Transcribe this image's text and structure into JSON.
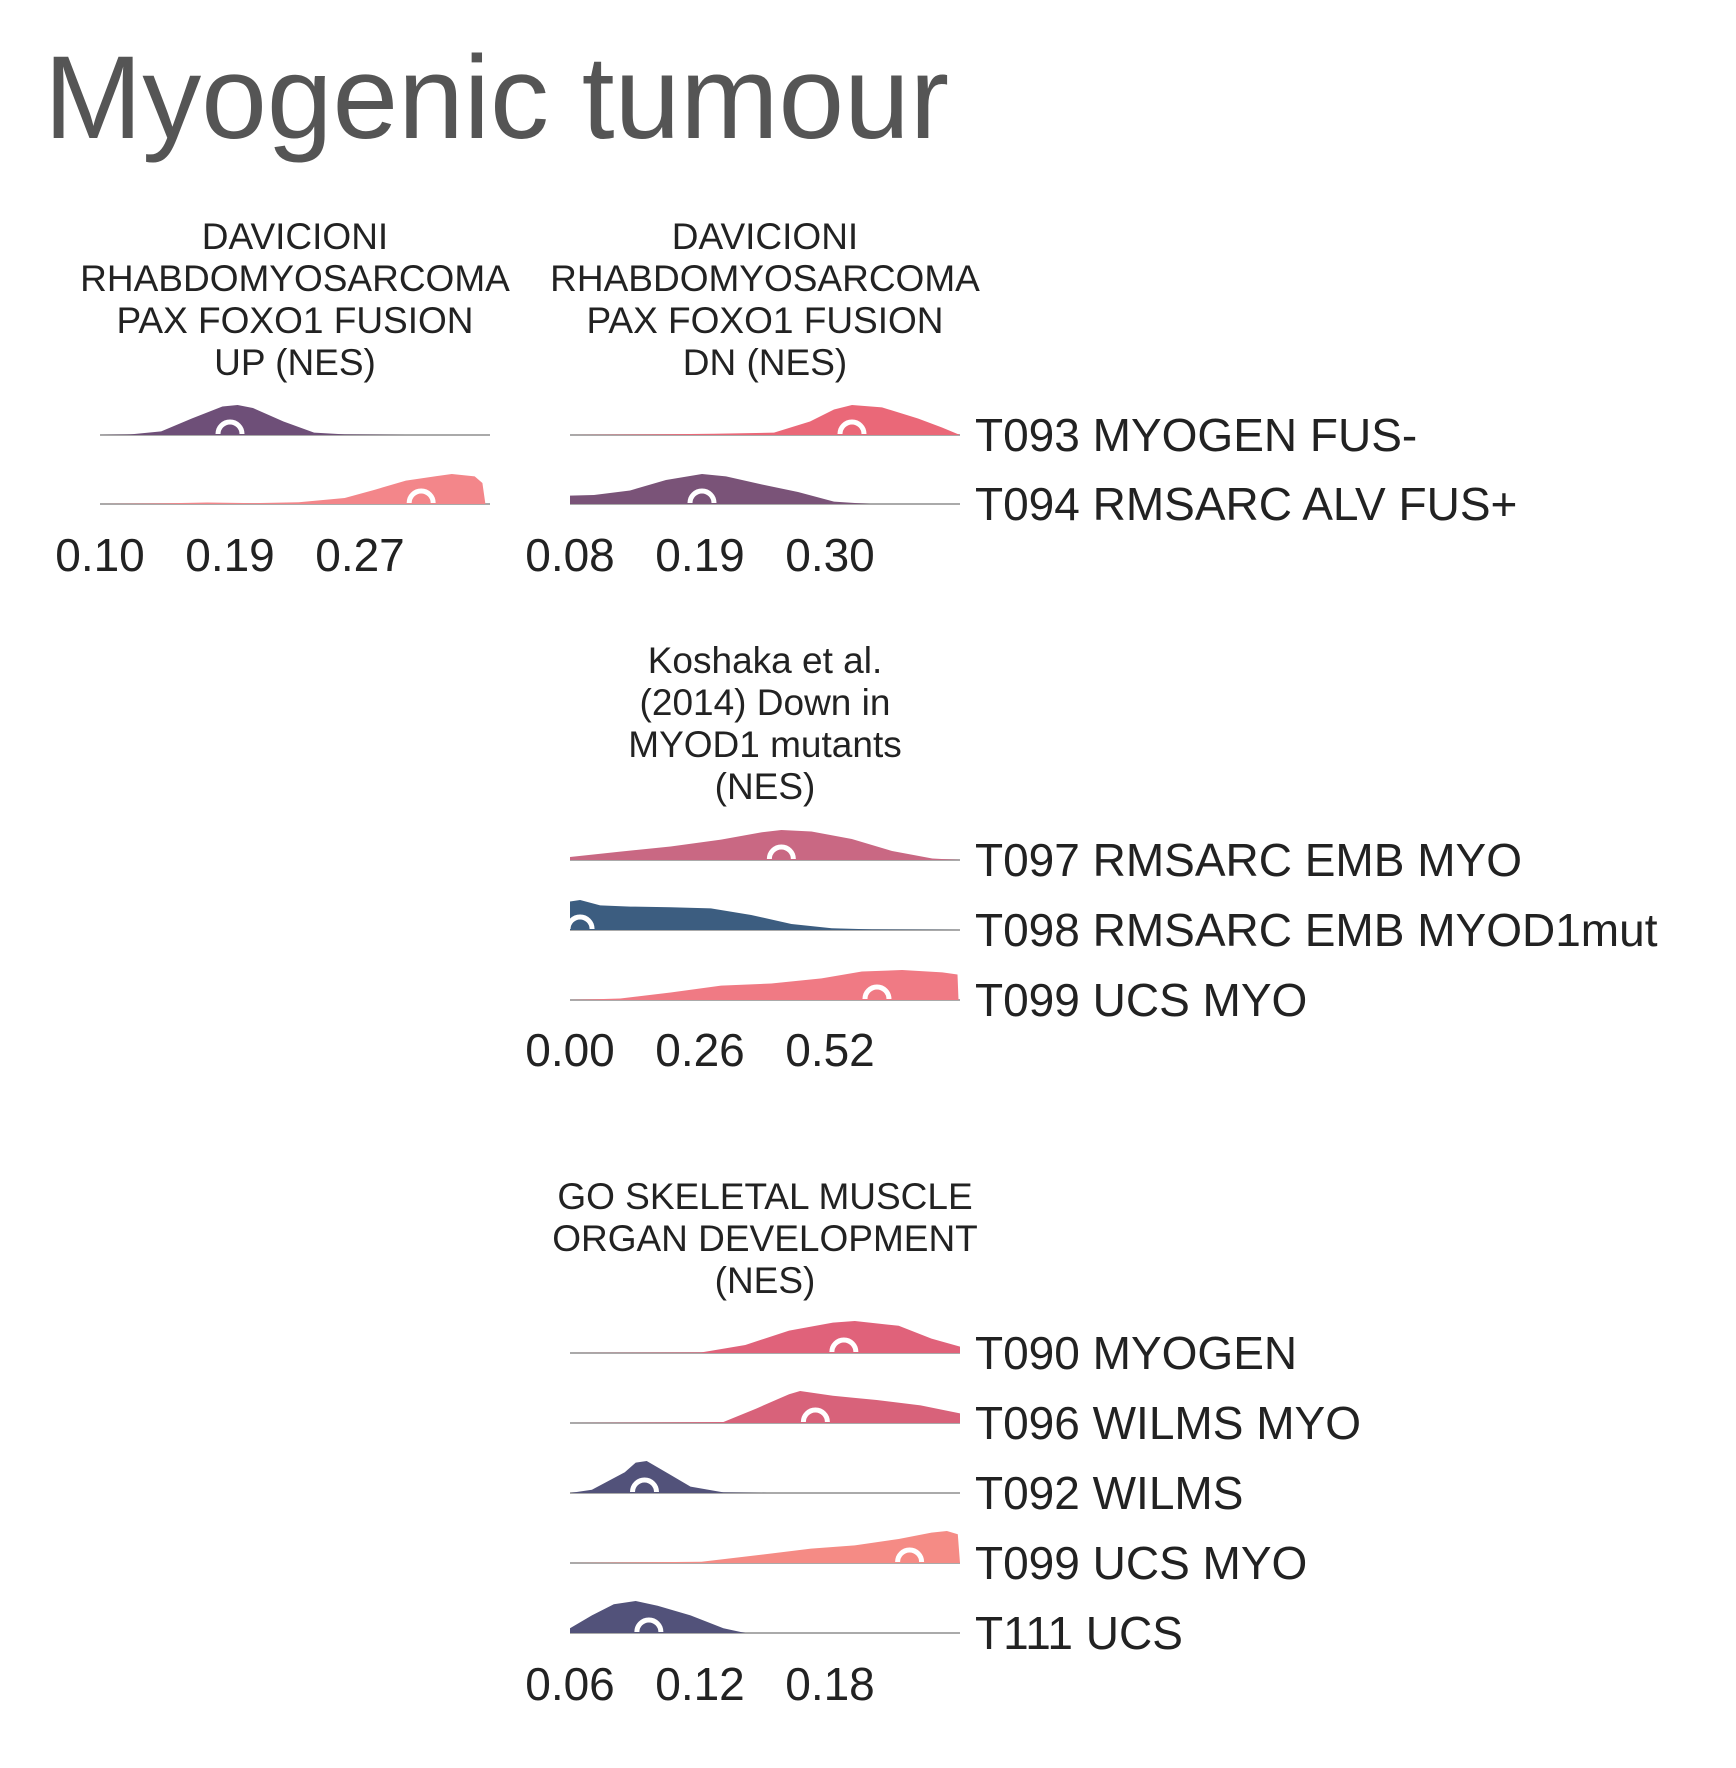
{
  "title": "Myogenic tumour",
  "chart_data": [
    {
      "type": "ridgeline",
      "title": "DAVICIONI RHABDOMYOSARCOMA PAX FOXO1 FUSION UP (NES)",
      "title_lines": [
        "DAVICIONI",
        "RHABDOMYOSARCOMA",
        "PAX FOXO1 FUSION",
        "UP (NES)"
      ],
      "xticks": [
        0.1,
        0.19,
        0.27
      ],
      "xtick_labels": [
        "0.10",
        "0.19",
        "0.27"
      ],
      "xlim": [
        0.1,
        0.355
      ],
      "rows": [
        {
          "label": "T093 MYOGEN FUS-",
          "median": 0.185,
          "color": "#6e4f78",
          "density": [
            [
              0.1,
              0.0
            ],
            [
              0.12,
              0.02
            ],
            [
              0.14,
              0.12
            ],
            [
              0.16,
              0.55
            ],
            [
              0.18,
              0.95
            ],
            [
              0.19,
              1.0
            ],
            [
              0.2,
              0.9
            ],
            [
              0.22,
              0.45
            ],
            [
              0.24,
              0.08
            ],
            [
              0.26,
              0.02
            ],
            [
              0.3,
              0.0
            ],
            [
              0.355,
              0.0
            ]
          ]
        },
        {
          "label": "T094 RMSARC ALV FUS+",
          "median": 0.31,
          "color": "#f3868a",
          "density": [
            [
              0.1,
              0.0
            ],
            [
              0.14,
              0.02
            ],
            [
              0.17,
              0.05
            ],
            [
              0.2,
              0.03
            ],
            [
              0.23,
              0.06
            ],
            [
              0.26,
              0.2
            ],
            [
              0.28,
              0.48
            ],
            [
              0.3,
              0.78
            ],
            [
              0.32,
              0.93
            ],
            [
              0.33,
              1.0
            ],
            [
              0.345,
              0.92
            ],
            [
              0.35,
              0.7
            ],
            [
              0.352,
              0.0
            ]
          ]
        }
      ]
    },
    {
      "type": "ridgeline",
      "title": "DAVICIONI RHABDOMYOSARCOMA PAX FOXO1 FUSION DN (NES)",
      "title_lines": [
        "DAVICIONI",
        "RHABDOMYOSARCOMA",
        "PAX FOXO1 FUSION",
        "DN (NES)"
      ],
      "xticks": [
        0.08,
        0.19,
        0.3
      ],
      "xtick_labels": [
        "0.08",
        "0.19",
        "0.30"
      ],
      "xlim": [
        0.08,
        0.405
      ],
      "rows": [
        {
          "label": "T093 MYOGEN FUS-",
          "median": 0.315,
          "color": "#ea6878",
          "density": [
            [
              0.08,
              0.0
            ],
            [
              0.15,
              0.02
            ],
            [
              0.2,
              0.04
            ],
            [
              0.25,
              0.08
            ],
            [
              0.28,
              0.45
            ],
            [
              0.3,
              0.85
            ],
            [
              0.315,
              1.0
            ],
            [
              0.34,
              0.92
            ],
            [
              0.37,
              0.55
            ],
            [
              0.39,
              0.25
            ],
            [
              0.405,
              0.0
            ]
          ]
        },
        {
          "label": "T094 RMSARC ALV FUS+",
          "median": 0.19,
          "color": "#7a5378",
          "density": [
            [
              0.08,
              0.28
            ],
            [
              0.1,
              0.3
            ],
            [
              0.13,
              0.45
            ],
            [
              0.16,
              0.8
            ],
            [
              0.19,
              1.0
            ],
            [
              0.21,
              0.92
            ],
            [
              0.24,
              0.65
            ],
            [
              0.27,
              0.4
            ],
            [
              0.3,
              0.08
            ],
            [
              0.33,
              0.0
            ],
            [
              0.405,
              0.0
            ]
          ]
        }
      ]
    },
    {
      "type": "ridgeline",
      "title": "Koshaka et al. (2014) Down in MYOD1 mutants (NES)",
      "title_lines": [
        "Koshaka et al.",
        "(2014) Down in",
        "MYOD1 mutants",
        "(NES)"
      ],
      "xticks": [
        0.0,
        0.26,
        0.52
      ],
      "xtick_labels": [
        "0.00",
        "0.26",
        "0.52"
      ],
      "xlim": [
        0.0,
        0.775
      ],
      "rows": [
        {
          "label": "T097 RMSARC EMB MYO",
          "median": 0.42,
          "color": "#c96883",
          "density": [
            [
              0.0,
              0.1
            ],
            [
              0.1,
              0.28
            ],
            [
              0.2,
              0.45
            ],
            [
              0.3,
              0.68
            ],
            [
              0.38,
              0.92
            ],
            [
              0.42,
              1.0
            ],
            [
              0.48,
              0.95
            ],
            [
              0.56,
              0.7
            ],
            [
              0.64,
              0.3
            ],
            [
              0.72,
              0.05
            ],
            [
              0.775,
              0.0
            ]
          ]
        },
        {
          "label": "T098 RMSARC EMB MYOD1mut",
          "median": 0.02,
          "color": "#3c5d80",
          "density": [
            [
              0.0,
              0.95
            ],
            [
              0.02,
              1.0
            ],
            [
              0.06,
              0.82
            ],
            [
              0.12,
              0.78
            ],
            [
              0.2,
              0.76
            ],
            [
              0.28,
              0.72
            ],
            [
              0.36,
              0.5
            ],
            [
              0.44,
              0.2
            ],
            [
              0.52,
              0.06
            ],
            [
              0.6,
              0.02
            ],
            [
              0.775,
              0.0
            ]
          ]
        },
        {
          "label": "T099 UCS MYO",
          "median": 0.61,
          "color": "#f07a84",
          "density": [
            [
              0.0,
              0.0
            ],
            [
              0.1,
              0.05
            ],
            [
              0.2,
              0.25
            ],
            [
              0.3,
              0.48
            ],
            [
              0.4,
              0.55
            ],
            [
              0.5,
              0.72
            ],
            [
              0.58,
              0.95
            ],
            [
              0.66,
              1.0
            ],
            [
              0.74,
              0.92
            ],
            [
              0.77,
              0.85
            ],
            [
              0.772,
              0.0
            ]
          ]
        }
      ]
    },
    {
      "type": "ridgeline",
      "title": "GO SKELETAL MUSCLE ORGAN DEVELOPMENT (NES)",
      "title_lines": [
        "GO SKELETAL MUSCLE",
        "ORGAN DEVELOPMENT",
        "(NES)"
      ],
      "xticks": [
        0.06,
        0.12,
        0.18
      ],
      "xtick_labels": [
        "0.06",
        "0.12",
        "0.18"
      ],
      "xlim": [
        0.06,
        0.238
      ],
      "rows": [
        {
          "label": "T090 MYOGEN",
          "median": 0.185,
          "color": "#e0627a",
          "density": [
            [
              0.06,
              0.0
            ],
            [
              0.12,
              0.02
            ],
            [
              0.14,
              0.25
            ],
            [
              0.16,
              0.7
            ],
            [
              0.18,
              0.95
            ],
            [
              0.19,
              1.0
            ],
            [
              0.21,
              0.85
            ],
            [
              0.225,
              0.45
            ],
            [
              0.238,
              0.2
            ]
          ]
        },
        {
          "label": "T096 WILMS MYO",
          "median": 0.172,
          "color": "#d8627a",
          "density": [
            [
              0.06,
              0.0
            ],
            [
              0.13,
              0.03
            ],
            [
              0.145,
              0.45
            ],
            [
              0.16,
              0.9
            ],
            [
              0.165,
              1.0
            ],
            [
              0.18,
              0.85
            ],
            [
              0.2,
              0.72
            ],
            [
              0.22,
              0.55
            ],
            [
              0.238,
              0.3
            ]
          ]
        },
        {
          "label": "T092 WILMS",
          "median": 0.094,
          "color": "#52527a",
          "density": [
            [
              0.06,
              0.0
            ],
            [
              0.07,
              0.1
            ],
            [
              0.085,
              0.65
            ],
            [
              0.09,
              0.95
            ],
            [
              0.095,
              1.0
            ],
            [
              0.105,
              0.6
            ],
            [
              0.115,
              0.2
            ],
            [
              0.13,
              0.02
            ],
            [
              0.15,
              0.0
            ],
            [
              0.238,
              0.0
            ]
          ]
        },
        {
          "label": "T099 UCS MYO",
          "median": 0.215,
          "color": "#f58b85",
          "density": [
            [
              0.06,
              0.0
            ],
            [
              0.12,
              0.04
            ],
            [
              0.15,
              0.28
            ],
            [
              0.17,
              0.45
            ],
            [
              0.19,
              0.55
            ],
            [
              0.21,
              0.75
            ],
            [
              0.225,
              0.95
            ],
            [
              0.232,
              1.0
            ],
            [
              0.237,
              0.9
            ],
            [
              0.238,
              0.0
            ]
          ]
        },
        {
          "label": "T111 UCS",
          "median": 0.096,
          "color": "#52527a",
          "density": [
            [
              0.06,
              0.15
            ],
            [
              0.07,
              0.55
            ],
            [
              0.08,
              0.9
            ],
            [
              0.09,
              1.0
            ],
            [
              0.1,
              0.85
            ],
            [
              0.115,
              0.55
            ],
            [
              0.13,
              0.15
            ],
            [
              0.14,
              0.0
            ],
            [
              0.238,
              0.0
            ]
          ]
        }
      ]
    }
  ]
}
